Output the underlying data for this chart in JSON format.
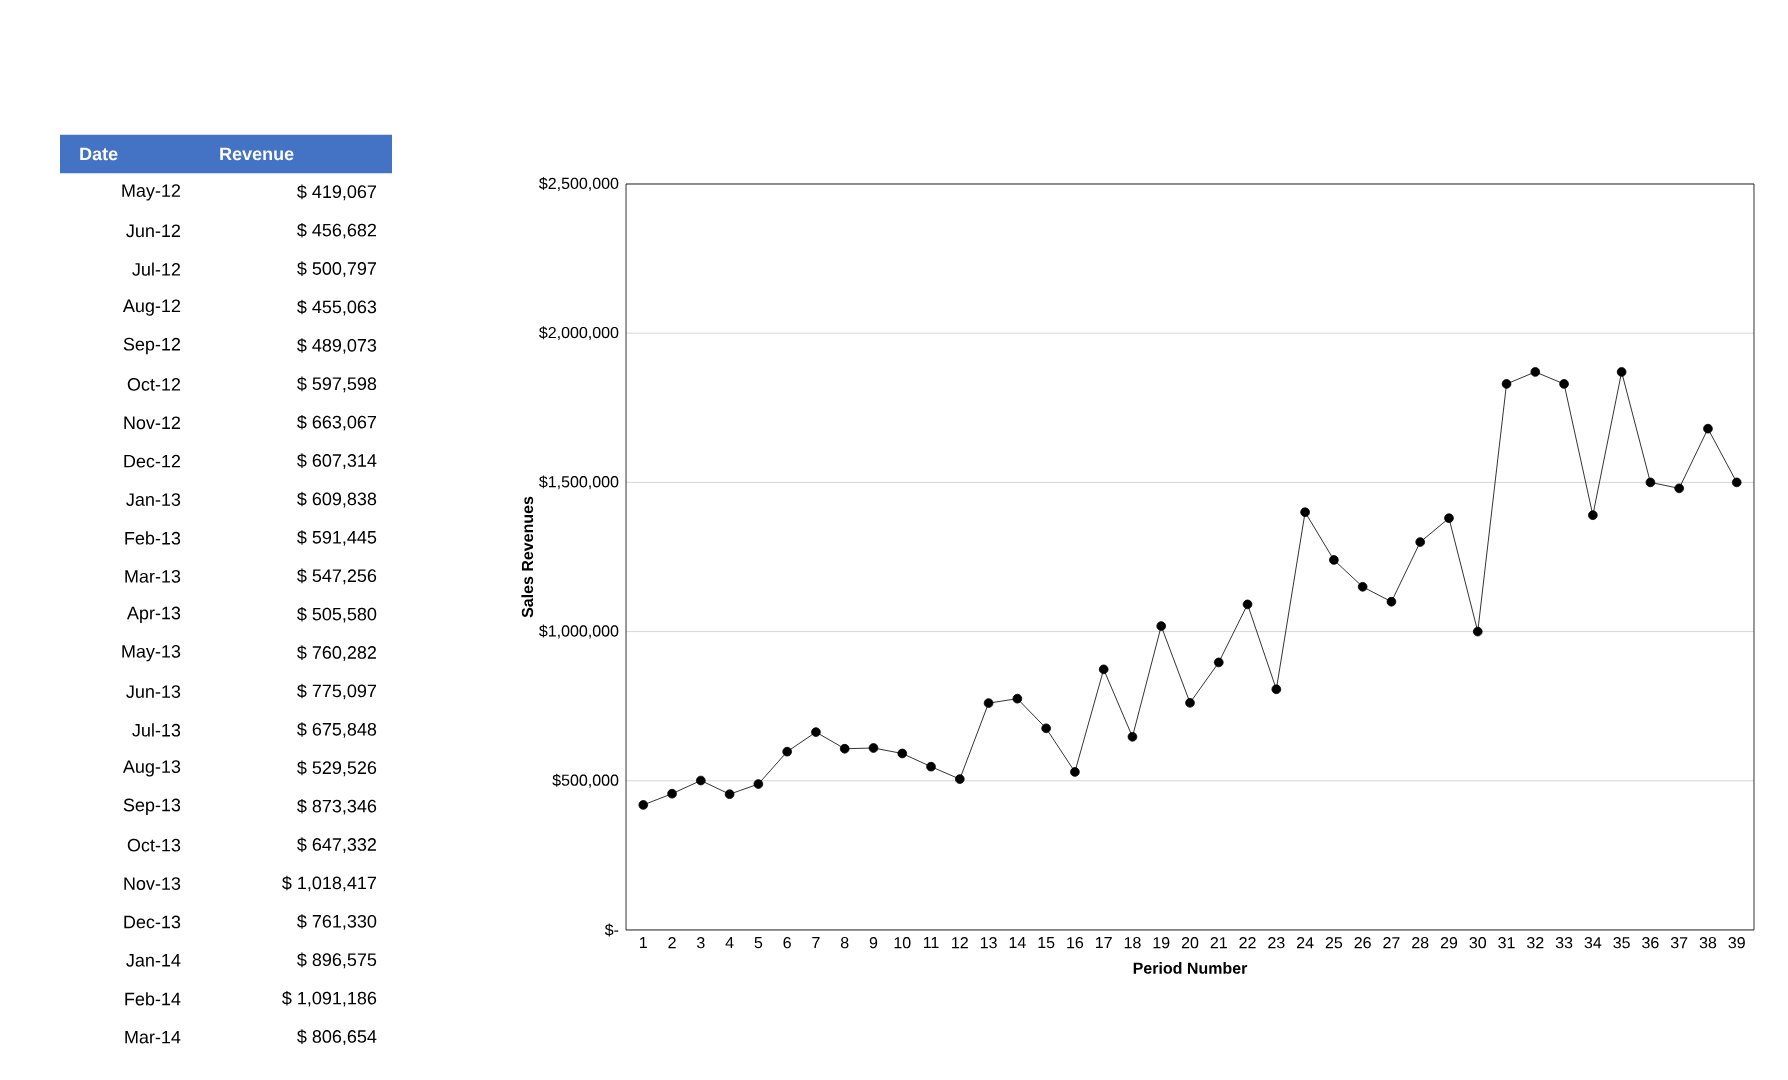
{
  "chart_data": {
    "type": "line",
    "xlabel": "Period Number",
    "ylabel": "Sales Revenues",
    "categories": [
      "1",
      "2",
      "3",
      "4",
      "5",
      "6",
      "7",
      "8",
      "9",
      "10",
      "11",
      "12",
      "13",
      "14",
      "15",
      "16",
      "17",
      "18",
      "19",
      "20",
      "21",
      "22",
      "23",
      "24",
      "25",
      "26",
      "27",
      "28",
      "29",
      "30",
      "31",
      "32",
      "33",
      "34",
      "35",
      "36",
      "37",
      "38",
      "39"
    ],
    "series": [
      {
        "color": "#000000",
        "values": [
          419067,
          456682,
          500797,
          455063,
          489073,
          597598,
          663067,
          607314,
          609838,
          591445,
          547256,
          505580,
          760282,
          775097,
          675848,
          529526,
          873346,
          647332,
          1018417,
          761330,
          896575,
          1091186,
          806654,
          1400000,
          1240000,
          1150000,
          1100000,
          1300000,
          1380000,
          1000000,
          1830000,
          1870000,
          1830000,
          1390000,
          1870000,
          1500000,
          1480000,
          1680000,
          1500000
        ]
      }
    ],
    "ylim": [
      0,
      2500000
    ],
    "yticks": [
      {
        "value": 0,
        "label": "$-"
      },
      {
        "value": 500000,
        "label": "$500,000"
      },
      {
        "value": 1000000,
        "label": "$1,000,000"
      },
      {
        "value": 1500000,
        "label": "$1,500,000"
      },
      {
        "value": 2000000,
        "label": "$2,000,000"
      },
      {
        "value": 2500000,
        "label": "$2,500,000"
      }
    ],
    "grid": "y",
    "marker": "circle",
    "line_style": "solid",
    "annotations": [
      "Date",
      "Revenue",
      "May-12",
      "$ 419,067",
      "Jun-12",
      "$ 456,682",
      "Jul-12",
      "$ 500,797",
      "Aug-12",
      "$ 455,063",
      "Sep-12",
      "$ 489,073",
      "Oct-12",
      "$ 597,598",
      "Nov-12",
      "$ 663,067",
      "Dec-12",
      "$ 607,314",
      "Jan-13",
      "$ 609,838",
      "Feb-13",
      "$ 591,445",
      "Mar-13",
      "$ 547,256",
      "Apr-13",
      "$ 505,580",
      "May-13",
      "$ 760,282",
      "Jun-13",
      "$ 775,097",
      "Jul-13",
      "$ 675,848",
      "Aug-13",
      "$ 529,526",
      "Sep-13",
      "$ 873,346",
      "Oct-13",
      "$ 647,332",
      "Nov-13",
      "$ 1,018,417",
      "Dec-13",
      "$ 761,330",
      "Jan-14",
      "$ 896,575",
      "Feb-14",
      "$ 1,091,186",
      "Mar-14",
      "$ 806,654"
    ]
  }
}
